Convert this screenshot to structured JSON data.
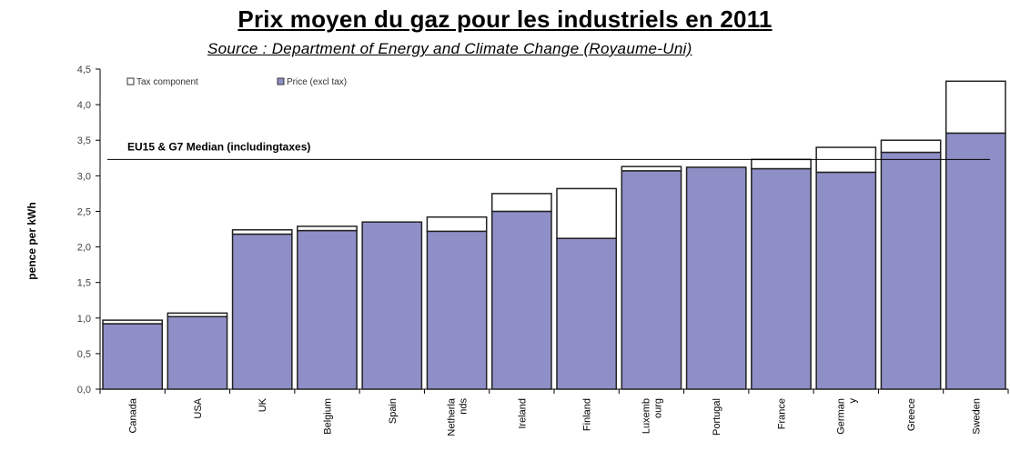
{
  "title": "Prix moyen du gaz pour les industriels en 2011",
  "subtitle": "Source : Department of Energy and Climate Change (Royaume-Uni)",
  "chart_data": {
    "type": "bar",
    "stacked": true,
    "ylabel": "pence per kWh",
    "ylim": [
      0,
      4.5
    ],
    "yticks": [
      "0,0",
      "0,5",
      "1,0",
      "1,5",
      "2,0",
      "2,5",
      "3,0",
      "3,5",
      "4,0",
      "4,5"
    ],
    "categories": [
      [
        "Canada"
      ],
      [
        "USA"
      ],
      [
        "UK"
      ],
      [
        "Belgium"
      ],
      [
        "Spain"
      ],
      [
        "Netherla",
        "nds"
      ],
      [
        "Ireland"
      ],
      [
        "Finland"
      ],
      [
        "Luxemb",
        "ourg"
      ],
      [
        "Portugal"
      ],
      [
        "France"
      ],
      [
        "German",
        "y"
      ],
      [
        "Greece"
      ],
      [
        "Sweden"
      ]
    ],
    "series": [
      {
        "name": "Price (excl tax)",
        "color": "#8f8fc7",
        "values": [
          0.92,
          1.02,
          2.18,
          2.23,
          2.35,
          2.22,
          2.5,
          2.12,
          3.07,
          3.12,
          3.1,
          3.05,
          3.33,
          3.6
        ]
      },
      {
        "name": "Tax component",
        "color": "#ffffff",
        "values": [
          0.05,
          0.05,
          0.06,
          0.06,
          0.0,
          0.2,
          0.25,
          0.7,
          0.06,
          0.0,
          0.13,
          0.35,
          0.17,
          0.73
        ]
      }
    ],
    "reference_line": {
      "label": "EU15 & G7 Median (includingtaxes)",
      "value": 3.23
    },
    "legend_position": "top-left",
    "grid": false
  }
}
